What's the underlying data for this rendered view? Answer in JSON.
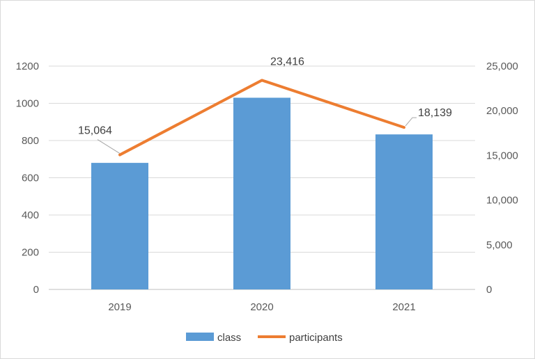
{
  "chart_data": {
    "type": "bar+line",
    "categories": [
      "2019",
      "2020",
      "2021"
    ],
    "series": [
      {
        "name": "class",
        "type": "bar",
        "axis": "left",
        "values": [
          680,
          1030,
          833
        ],
        "color": "#5b9bd5"
      },
      {
        "name": "participants",
        "type": "line",
        "axis": "right",
        "values": [
          15064,
          23416,
          18139
        ],
        "color": "#ed7d31",
        "labels": [
          "15,064",
          "23,416",
          "18,139"
        ]
      }
    ],
    "y_left": {
      "min": 0,
      "max": 1200,
      "ticks": [
        "0",
        "200",
        "400",
        "600",
        "800",
        "1000",
        "1200"
      ]
    },
    "y_right": {
      "min": 0,
      "max": 25000,
      "ticks": [
        "0",
        "5,000",
        "10,000",
        "15,000",
        "20,000",
        "25,000"
      ]
    },
    "grid": true,
    "legend": {
      "position": "bottom",
      "entries": [
        "class",
        "participants"
      ]
    },
    "title": "",
    "xlabel": "",
    "ylabel": ""
  }
}
